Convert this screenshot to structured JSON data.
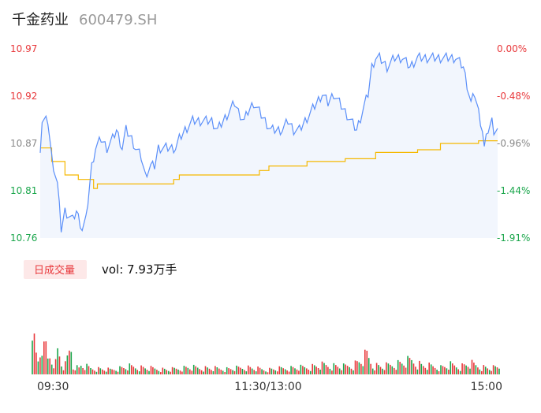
{
  "header": {
    "name": "千金药业",
    "code": "600479.SH"
  },
  "volume_panel": {
    "badge": "日成交量",
    "label": "vol: 7.93万手"
  },
  "colors": {
    "price_line": "#5b8ff9",
    "avg_line": "#f5b800",
    "area_fill": "#f2f6fd",
    "up": "#e8383b",
    "down": "#1aa64b",
    "neutral": "#888888",
    "badge_bg": "#fde8e8"
  },
  "chart_data": [
    {
      "type": "line",
      "title": "",
      "x_ticks": [
        "09:30",
        "11:30/13:00",
        "15:00"
      ],
      "y_left_ticks": [
        "10.97",
        "10.92",
        "10.87",
        "10.81",
        "10.76"
      ],
      "y_right_ticks": [
        "0.00%",
        "-0.48%",
        "-0.96%",
        "-1.44%",
        "-1.91%"
      ],
      "y_range": [
        10.76,
        10.97
      ],
      "n_minutes": 241,
      "price_keypoints": [
        [
          0,
          10.86
        ],
        [
          1,
          10.89
        ],
        [
          4,
          10.89
        ],
        [
          6,
          10.85
        ],
        [
          9,
          10.82
        ],
        [
          11,
          10.77
        ],
        [
          13,
          10.79
        ],
        [
          17,
          10.78
        ],
        [
          19,
          10.79
        ],
        [
          22,
          10.77
        ],
        [
          24,
          10.78
        ],
        [
          25,
          10.8
        ],
        [
          27,
          10.84
        ],
        [
          29,
          10.86
        ],
        [
          32,
          10.87
        ],
        [
          35,
          10.86
        ],
        [
          38,
          10.87
        ],
        [
          40,
          10.88
        ],
        [
          43,
          10.86
        ],
        [
          45,
          10.88
        ],
        [
          48,
          10.87
        ],
        [
          50,
          10.86
        ],
        [
          53,
          10.85
        ],
        [
          55,
          10.83
        ],
        [
          58,
          10.84
        ],
        [
          60,
          10.84
        ],
        [
          62,
          10.86
        ],
        [
          65,
          10.86
        ],
        [
          68,
          10.86
        ],
        [
          71,
          10.86
        ],
        [
          73,
          10.87
        ],
        [
          76,
          10.88
        ],
        [
          80,
          10.89
        ],
        [
          84,
          10.89
        ],
        [
          87,
          10.89
        ],
        [
          90,
          10.89
        ],
        [
          93,
          10.88
        ],
        [
          96,
          10.89
        ],
        [
          99,
          10.9
        ],
        [
          102,
          10.91
        ],
        [
          104,
          10.9
        ],
        [
          107,
          10.89
        ],
        [
          109,
          10.9
        ],
        [
          112,
          10.91
        ],
        [
          115,
          10.9
        ],
        [
          118,
          10.89
        ],
        [
          121,
          10.88
        ],
        [
          124,
          10.88
        ],
        [
          127,
          10.88
        ],
        [
          130,
          10.89
        ],
        [
          133,
          10.88
        ],
        [
          136,
          10.88
        ],
        [
          139,
          10.89
        ],
        [
          142,
          10.9
        ],
        [
          145,
          10.91
        ],
        [
          148,
          10.92
        ],
        [
          151,
          10.91
        ],
        [
          154,
          10.92
        ],
        [
          157,
          10.91
        ],
        [
          160,
          10.9
        ],
        [
          163,
          10.89
        ],
        [
          166,
          10.88
        ],
        [
          169,
          10.9
        ],
        [
          172,
          10.92
        ],
        [
          174,
          10.95
        ],
        [
          176,
          10.96
        ],
        [
          178,
          10.96
        ],
        [
          182,
          10.95
        ],
        [
          186,
          10.96
        ],
        [
          190,
          10.96
        ],
        [
          194,
          10.95
        ],
        [
          198,
          10.96
        ],
        [
          202,
          10.96
        ],
        [
          206,
          10.96
        ],
        [
          210,
          10.96
        ],
        [
          214,
          10.96
        ],
        [
          218,
          10.96
        ],
        [
          222,
          10.95
        ],
        [
          224,
          10.93
        ],
        [
          226,
          10.91
        ],
        [
          228,
          10.92
        ],
        [
          230,
          10.9
        ],
        [
          232,
          10.88
        ],
        [
          233,
          10.86
        ],
        [
          235,
          10.88
        ],
        [
          237,
          10.89
        ],
        [
          238,
          10.88
        ],
        [
          240,
          10.88
        ]
      ],
      "avg_steps": [
        [
          0,
          10.86
        ],
        [
          6,
          10.845
        ],
        [
          13,
          10.83
        ],
        [
          20,
          10.825
        ],
        [
          28,
          10.815
        ],
        [
          30,
          10.82
        ],
        [
          70,
          10.825
        ],
        [
          73,
          10.83
        ],
        [
          115,
          10.835
        ],
        [
          120,
          10.84
        ],
        [
          140,
          10.845
        ],
        [
          160,
          10.848
        ],
        [
          176,
          10.855
        ],
        [
          198,
          10.858
        ],
        [
          210,
          10.865
        ],
        [
          230,
          10.868
        ],
        [
          240,
          10.868
        ]
      ]
    },
    {
      "type": "bar",
      "title": "日成交量",
      "n_bars": 241,
      "note": "per-minute volume; colours indicate up/down minute",
      "volume_keypoints": [
        [
          0,
          100
        ],
        [
          1,
          40
        ],
        [
          2,
          25
        ],
        [
          3,
          18
        ],
        [
          4,
          30
        ],
        [
          5,
          45
        ],
        [
          6,
          30
        ],
        [
          7,
          35
        ],
        [
          8,
          20
        ],
        [
          9,
          25
        ],
        [
          10,
          20
        ],
        [
          11,
          18
        ],
        [
          12,
          15
        ],
        [
          13,
          30
        ],
        [
          14,
          25
        ],
        [
          15,
          14
        ],
        [
          16,
          10
        ],
        [
          17,
          12
        ],
        [
          18,
          20
        ],
        [
          19,
          30
        ],
        [
          20,
          35
        ],
        [
          21,
          10
        ],
        [
          22,
          12
        ],
        [
          23,
          9
        ],
        [
          24,
          8
        ],
        [
          25,
          12
        ],
        [
          30,
          8
        ],
        [
          40,
          6
        ],
        [
          50,
          10
        ],
        [
          60,
          8
        ],
        [
          70,
          6
        ],
        [
          80,
          9
        ],
        [
          90,
          8
        ],
        [
          100,
          7
        ],
        [
          110,
          9
        ],
        [
          120,
          6
        ],
        [
          130,
          8
        ],
        [
          140,
          9
        ],
        [
          150,
          12
        ],
        [
          160,
          10
        ],
        [
          165,
          12
        ],
        [
          170,
          20
        ],
        [
          172,
          25
        ],
        [
          175,
          12
        ],
        [
          180,
          10
        ],
        [
          190,
          15
        ],
        [
          195,
          18
        ],
        [
          200,
          12
        ],
        [
          210,
          9
        ],
        [
          215,
          12
        ],
        [
          220,
          10
        ],
        [
          225,
          14
        ],
        [
          230,
          10
        ],
        [
          235,
          8
        ],
        [
          240,
          9
        ]
      ]
    }
  ]
}
